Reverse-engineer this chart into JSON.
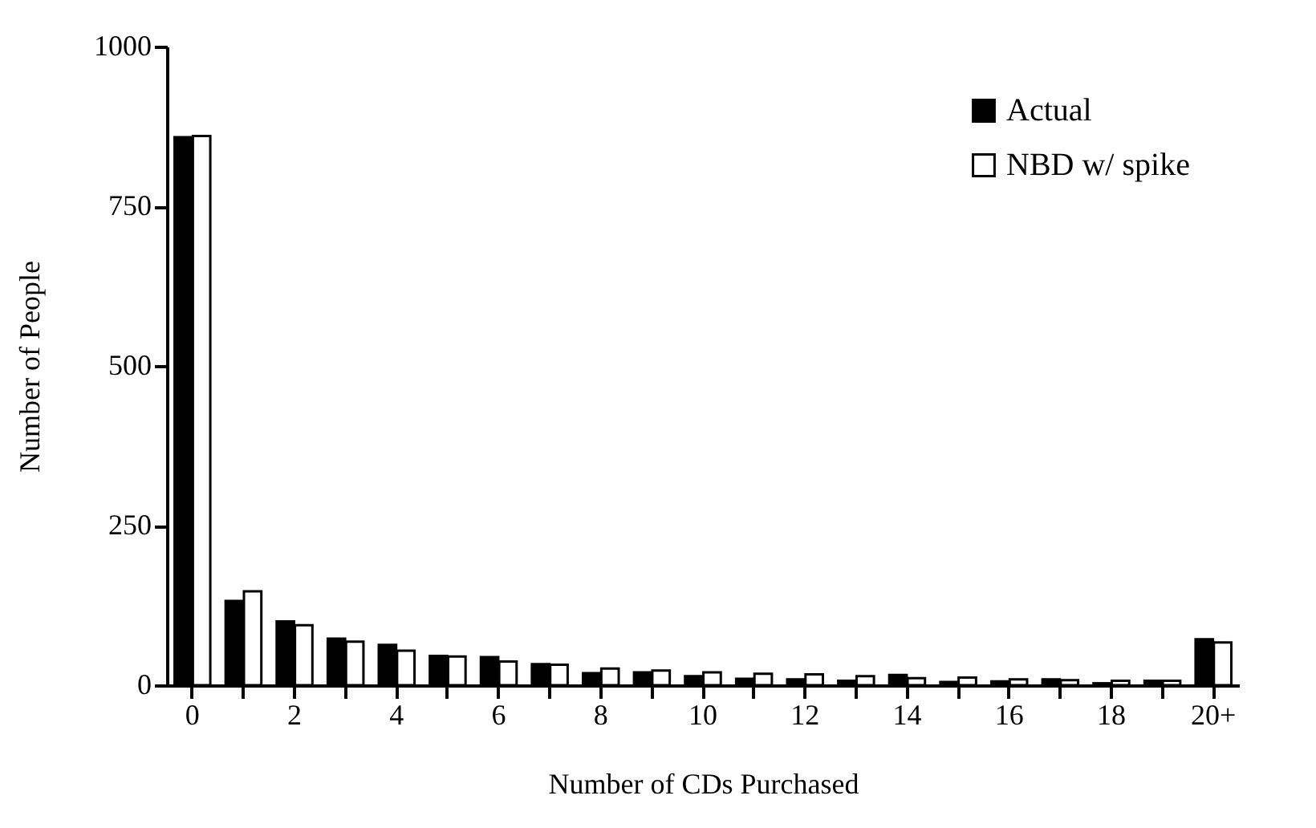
{
  "chart_data": {
    "type": "bar",
    "xlabel": "Number of CDs Purchased",
    "ylabel": "Number of People",
    "categories": [
      "0",
      null,
      "2",
      null,
      "4",
      null,
      "6",
      null,
      "8",
      null,
      "10",
      null,
      "12",
      null,
      "14",
      null,
      "16",
      null,
      "18",
      null,
      "20+"
    ],
    "series": [
      {
        "name": "Actual",
        "color": "#000000",
        "values": [
          858,
          132,
          100,
          73,
          63,
          46,
          44,
          33,
          19,
          20,
          14,
          10,
          9,
          7,
          16,
          5,
          6,
          9,
          3,
          7,
          72
        ]
      },
      {
        "name": "NBD w/ spike",
        "color": "#ffffff",
        "values": [
          860,
          147,
          94,
          68,
          54,
          45,
          37,
          32,
          26,
          23,
          20,
          18,
          17,
          14,
          11,
          12,
          9,
          8,
          7,
          7,
          67
        ]
      }
    ],
    "ylim": [
      0,
      1000
    ],
    "yticks": [
      0,
      250,
      500,
      750,
      1000
    ],
    "grid": false,
    "legend": "top right"
  }
}
